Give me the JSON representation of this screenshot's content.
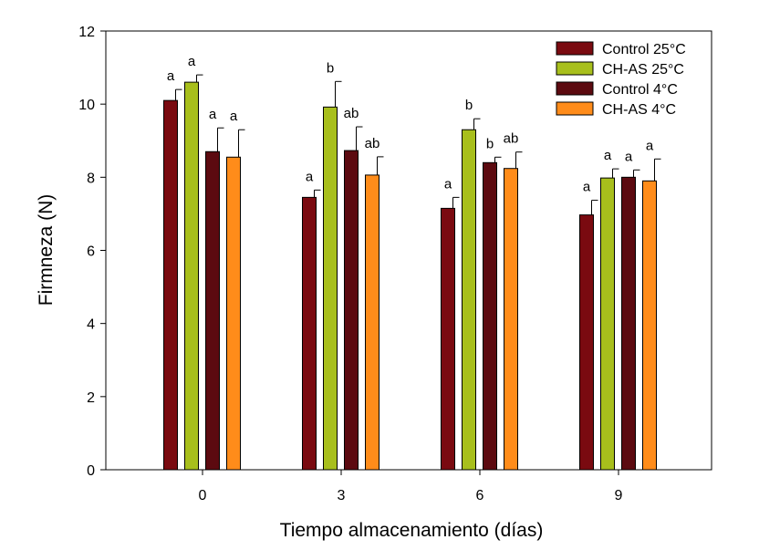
{
  "chart_data": {
    "type": "bar",
    "title": "",
    "xlabel": "Tiempo almacenamiento (días)",
    "ylabel": "Firmneza (N)",
    "ylim": [
      0,
      12
    ],
    "yticks": [
      "0",
      "2",
      "4",
      "6",
      "8",
      "10",
      "12"
    ],
    "categories": [
      "0",
      "3",
      "6",
      "9"
    ],
    "legend_position": "top-right",
    "series": [
      {
        "name": "Control 25°C",
        "color": "#7a0a10",
        "values": [
          10.1,
          7.45,
          7.15,
          6.97
        ],
        "errors": [
          0.3,
          0.2,
          0.3,
          0.4
        ],
        "labels": [
          "a",
          "a",
          "a",
          "a"
        ]
      },
      {
        "name": "CH-AS 25°C",
        "color": "#a8bf1c",
        "values": [
          10.6,
          9.92,
          9.3,
          7.98
        ],
        "errors": [
          0.2,
          0.7,
          0.3,
          0.25
        ],
        "labels": [
          "a",
          "b",
          "b",
          "a"
        ]
      },
      {
        "name": "Control 4°C",
        "color": "#5c0a10",
        "values": [
          8.7,
          8.73,
          8.4,
          8.0
        ],
        "errors": [
          0.65,
          0.65,
          0.15,
          0.2
        ],
        "labels": [
          "a",
          "ab",
          "b",
          "a"
        ]
      },
      {
        "name": "CH-AS 4°C",
        "color": "#ff8c1a",
        "values": [
          8.55,
          8.06,
          8.24,
          7.9
        ],
        "errors": [
          0.75,
          0.5,
          0.45,
          0.6
        ],
        "labels": [
          "a",
          "ab",
          "ab",
          "a"
        ]
      }
    ]
  }
}
